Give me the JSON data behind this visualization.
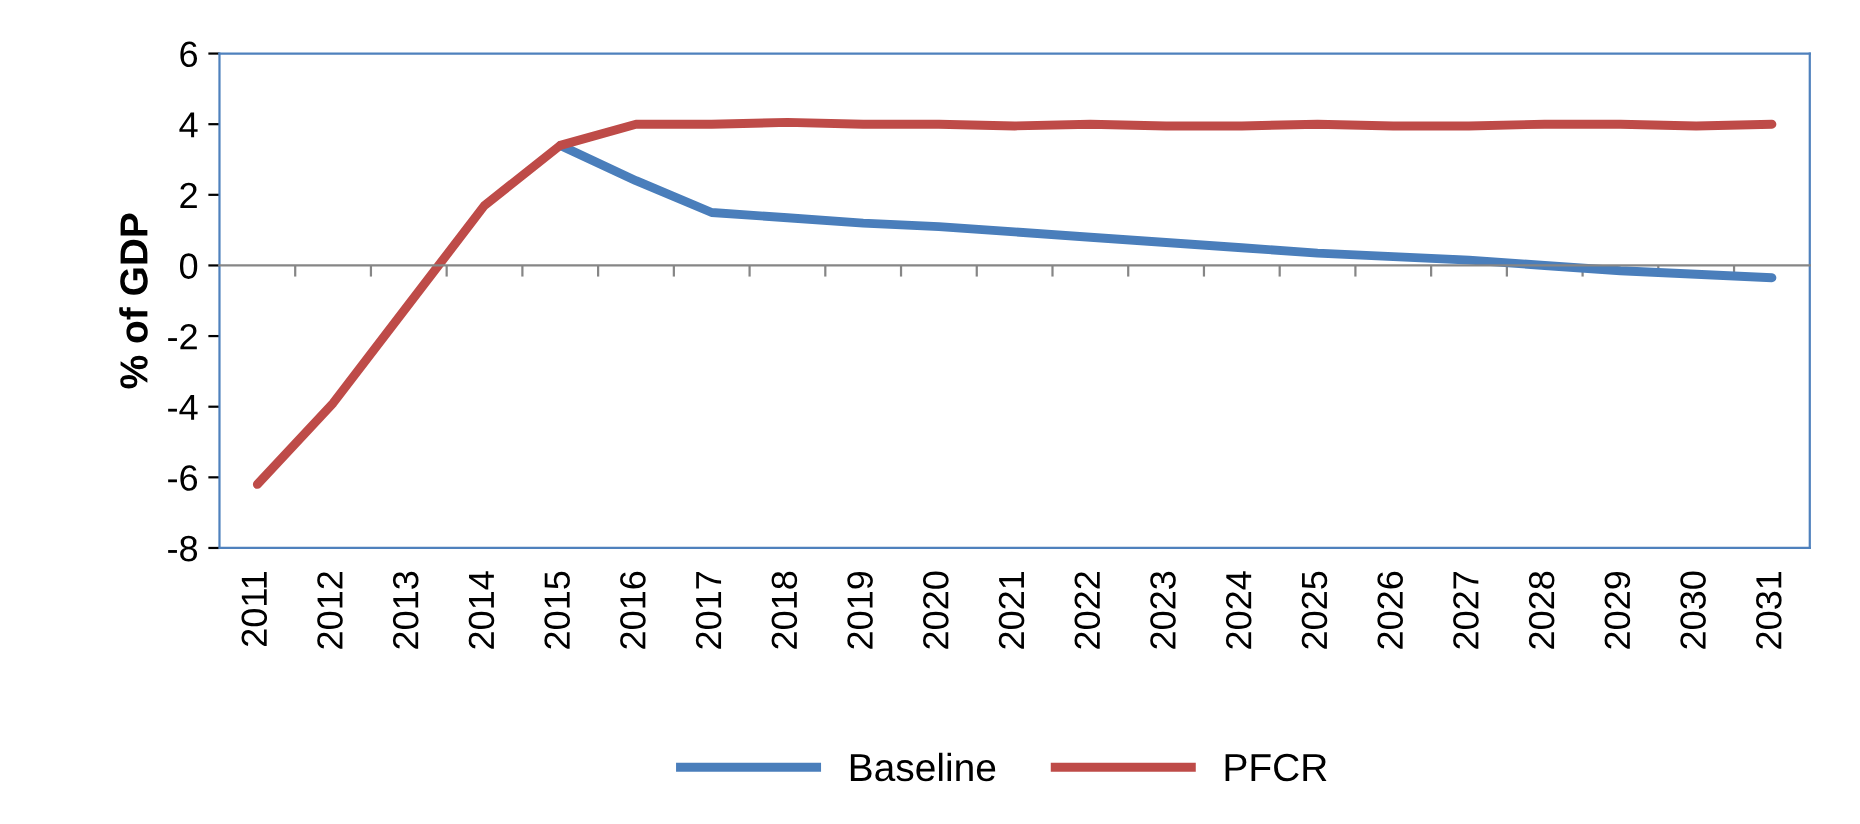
{
  "chart_data": {
    "type": "line",
    "ylabel": "% of GDP",
    "categories": [
      "2011",
      "2012",
      "2013",
      "2014",
      "2015",
      "2016",
      "2017",
      "2018",
      "2019",
      "2020",
      "2021",
      "2022",
      "2023",
      "2024",
      "2025",
      "2026",
      "2027",
      "2028",
      "2029",
      "2030",
      "2031"
    ],
    "series": [
      {
        "name": "Baseline",
        "color": "#4a7ebb",
        "values": [
          null,
          null,
          null,
          null,
          3.4,
          2.4,
          1.5,
          1.35,
          1.2,
          1.1,
          0.95,
          0.8,
          0.65,
          0.5,
          0.35,
          0.25,
          0.15,
          0.0,
          -0.15,
          -0.25,
          -0.35
        ]
      },
      {
        "name": "PFCR",
        "color": "#be4b48",
        "values": [
          -6.2,
          -3.9,
          -1.1,
          1.7,
          3.4,
          4.0,
          4.0,
          4.05,
          4.0,
          4.0,
          3.95,
          4.0,
          3.95,
          3.95,
          4.0,
          3.95,
          3.95,
          4.0,
          4.0,
          3.95,
          4.0
        ]
      }
    ],
    "ylim": [
      -8,
      6
    ],
    "yticks": [
      -8,
      -6,
      -4,
      -2,
      0,
      2,
      4,
      6
    ],
    "legend": "bottom",
    "marker": "none",
    "line_style": "solid"
  }
}
